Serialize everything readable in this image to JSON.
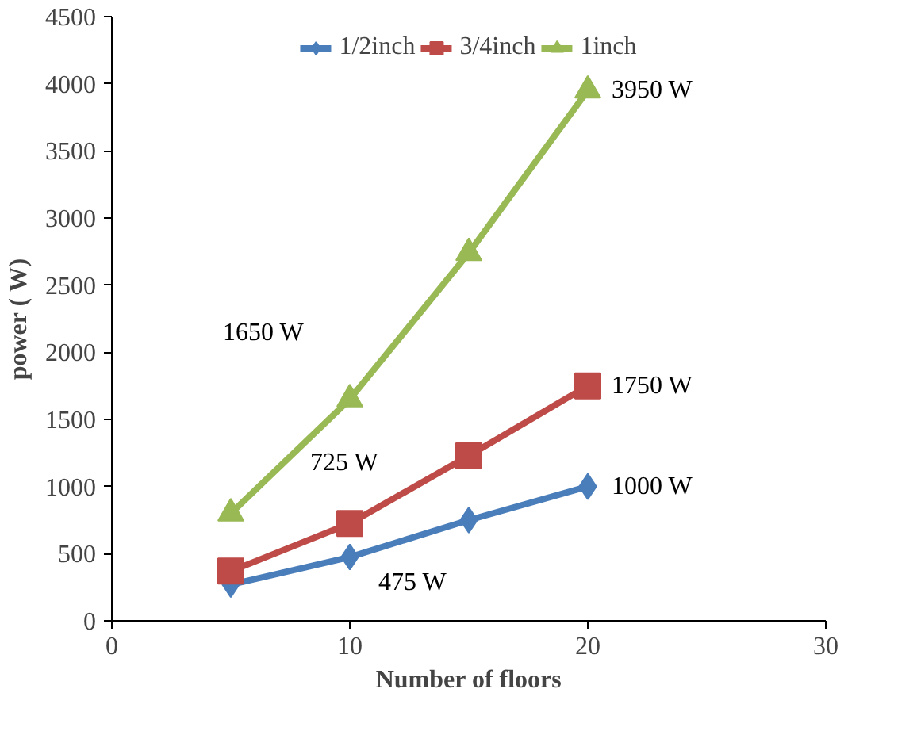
{
  "chart_data": {
    "type": "line",
    "xlabel": "Number of floors",
    "ylabel": "power ( W)",
    "x": [
      5,
      10,
      15,
      20
    ],
    "series": [
      {
        "name": "1/2inch",
        "color": "#4a7ebb",
        "marker": "diamond",
        "values": [
          270,
          475,
          750,
          1000
        ],
        "value_labels": [
          null,
          "475 W",
          null,
          "1000 W"
        ]
      },
      {
        "name": "3/4inch",
        "color": "#be4b48",
        "marker": "square",
        "values": [
          370,
          725,
          1230,
          1750
        ],
        "value_labels": [
          null,
          "725 W",
          null,
          "1750 W"
        ]
      },
      {
        "name": "1inch",
        "color": "#98b954",
        "marker": "triangle",
        "values": [
          800,
          1650,
          2740,
          3950
        ],
        "value_labels": [
          null,
          "1650 W",
          null,
          "3950 W"
        ]
      }
    ],
    "xlim": [
      0,
      30
    ],
    "xticks": [
      0,
      10,
      20,
      30
    ],
    "ylim": [
      0,
      4500
    ],
    "yticks": [
      0,
      500,
      1000,
      1500,
      2000,
      2500,
      3000,
      3500,
      4000,
      4500
    ],
    "grid": false,
    "legend": "top",
    "line_style": "solid"
  }
}
